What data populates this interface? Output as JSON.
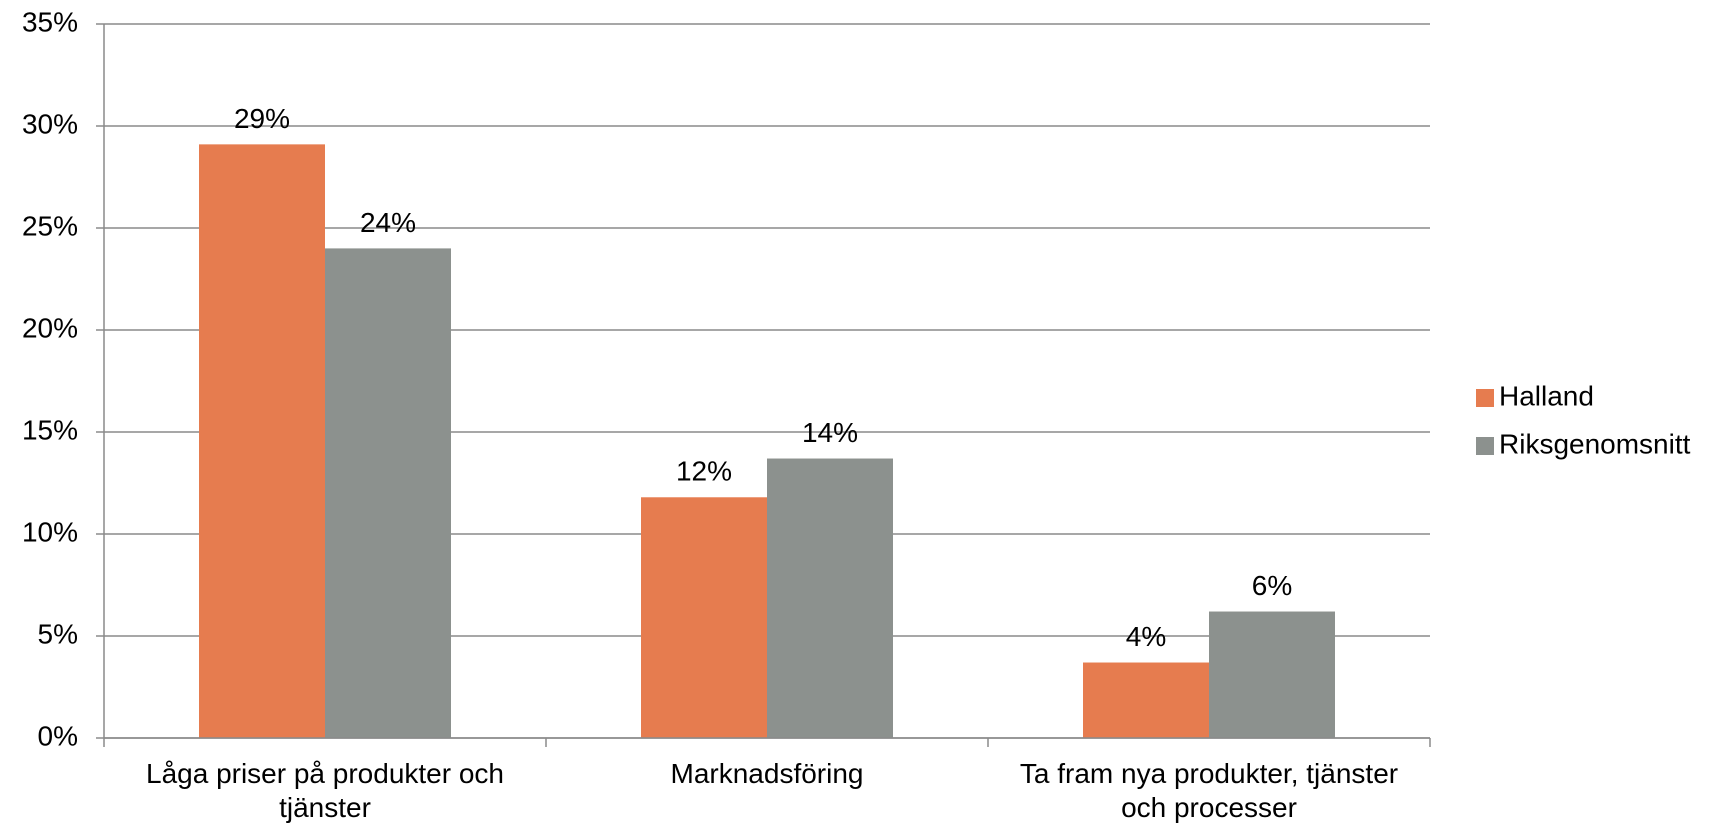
{
  "chart_data": {
    "type": "bar",
    "categories": [
      "Låga priser på produkter och tjänster",
      "Marknadsföring",
      "Ta fram nya produkter, tjänster och processer"
    ],
    "series": [
      {
        "name": "Halland",
        "color": "#e67c4f",
        "values": [
          29.1,
          11.8,
          3.7
        ],
        "value_labels": [
          "29%",
          "12%",
          "4%"
        ]
      },
      {
        "name": "Riksgenomsnitt",
        "color": "#8c918e",
        "values": [
          24,
          13.7,
          6.2
        ],
        "value_labels": [
          "24%",
          "14%",
          "6%"
        ]
      }
    ],
    "ylim": [
      0,
      35
    ],
    "yticks": [
      {
        "value": 0,
        "label": "0%"
      },
      {
        "value": 5,
        "label": "5%"
      },
      {
        "value": 10,
        "label": "10%"
      },
      {
        "value": 15,
        "label": "15%"
      },
      {
        "value": 20,
        "label": "20%"
      },
      {
        "value": 25,
        "label": "25%"
      },
      {
        "value": 30,
        "label": "30%"
      },
      {
        "value": 35,
        "label": "35%"
      }
    ],
    "grid": true,
    "legend": "right"
  }
}
